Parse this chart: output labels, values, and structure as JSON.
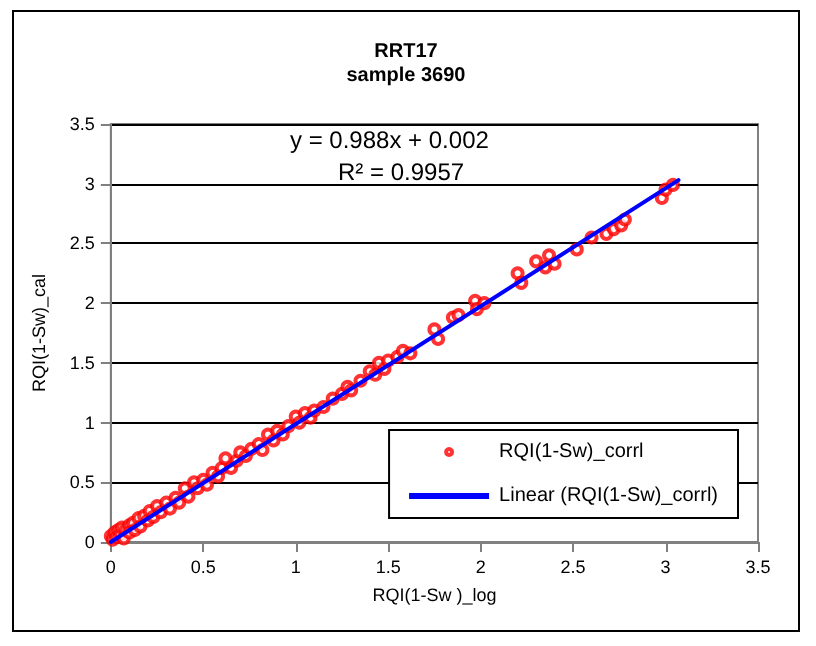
{
  "chart_data": {
    "type": "scatter",
    "title": "RRT17",
    "subtitle": "sample 3690",
    "xlabel": "RQI(1-Sw )_log",
    "ylabel": "RQI(1-Sw)_cal",
    "annotations": [
      "y = 0.988x + 0.002",
      "R² = 0.9957"
    ],
    "xlim": [
      0,
      3.5
    ],
    "ylim": [
      0,
      3.5
    ],
    "xticks": [
      0,
      0.5,
      1,
      1.5,
      2,
      2.5,
      3,
      3.5
    ],
    "yticks": [
      0,
      0.5,
      1,
      1.5,
      2,
      2.5,
      3,
      3.5
    ],
    "grid": "y",
    "legend": "bottom right",
    "series": [
      {
        "name": "RQI(1-Sw)_corrl",
        "marker": "circle",
        "color": "#ff0000",
        "x": [
          0,
          0.01,
          0.02,
          0.03,
          0.04,
          0.05,
          0.06,
          0.07,
          0.08,
          0.1,
          0.1,
          0.12,
          0.13,
          0.15,
          0.16,
          0.18,
          0.2,
          0.21,
          0.23,
          0.25,
          0.27,
          0.3,
          0.32,
          0.35,
          0.37,
          0.4,
          0.42,
          0.45,
          0.47,
          0.5,
          0.52,
          0.55,
          0.58,
          0.6,
          0.62,
          0.65,
          0.68,
          0.7,
          0.73,
          0.76,
          0.8,
          0.82,
          0.85,
          0.88,
          0.9,
          0.93,
          0.96,
          1.0,
          1.02,
          1.05,
          1.08,
          1.1,
          1.15,
          1.2,
          1.25,
          1.28,
          1.3,
          1.35,
          1.4,
          1.43,
          1.45,
          1.48,
          1.5,
          1.55,
          1.58,
          1.62,
          1.75,
          1.77,
          1.85,
          1.88,
          1.97,
          1.98,
          2.02,
          2.2,
          2.22,
          2.3,
          2.35,
          2.37,
          2.4,
          2.52,
          2.6,
          2.68,
          2.72,
          2.76,
          2.78,
          2.98,
          3.0,
          3.04
        ],
        "values": [
          0.05,
          0.02,
          0.08,
          0.04,
          0.1,
          0.06,
          0.12,
          0.03,
          0.1,
          0.14,
          0.08,
          0.16,
          0.1,
          0.2,
          0.13,
          0.22,
          0.18,
          0.26,
          0.21,
          0.3,
          0.25,
          0.33,
          0.28,
          0.37,
          0.33,
          0.45,
          0.38,
          0.5,
          0.45,
          0.52,
          0.48,
          0.58,
          0.55,
          0.62,
          0.7,
          0.62,
          0.68,
          0.75,
          0.72,
          0.78,
          0.82,
          0.77,
          0.9,
          0.85,
          0.93,
          0.9,
          0.97,
          1.05,
          1.0,
          1.08,
          1.04,
          1.1,
          1.13,
          1.2,
          1.24,
          1.3,
          1.27,
          1.35,
          1.43,
          1.4,
          1.5,
          1.45,
          1.52,
          1.55,
          1.6,
          1.58,
          1.78,
          1.7,
          1.88,
          1.9,
          2.02,
          1.95,
          2.0,
          2.25,
          2.17,
          2.35,
          2.3,
          2.4,
          2.33,
          2.45,
          2.55,
          2.58,
          2.62,
          2.65,
          2.7,
          2.88,
          2.95,
          2.99
        ]
      },
      {
        "name": "Linear (RQI(1-Sw)_corrl)",
        "type": "line",
        "marker": "none",
        "line_style": "solid",
        "color": "#0000ff",
        "x": [
          0,
          3.07
        ],
        "values": [
          0,
          3.03
        ]
      }
    ]
  }
}
